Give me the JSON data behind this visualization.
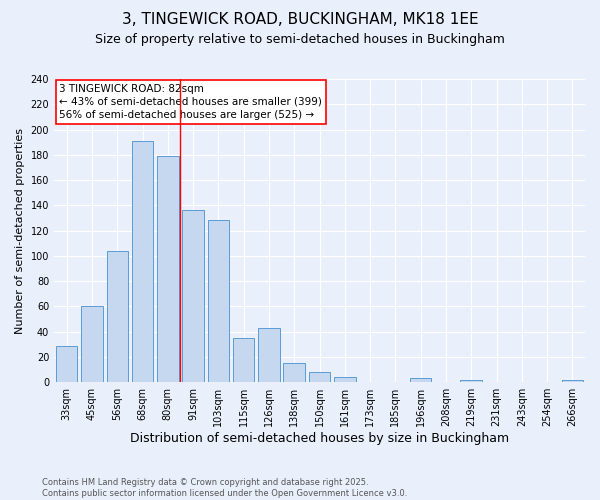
{
  "title": "3, TINGEWICK ROAD, BUCKINGHAM, MK18 1EE",
  "subtitle": "Size of property relative to semi-detached houses in Buckingham",
  "xlabel": "Distribution of semi-detached houses by size in Buckingham",
  "ylabel": "Number of semi-detached properties",
  "footnote1": "Contains HM Land Registry data © Crown copyright and database right 2025.",
  "footnote2": "Contains public sector information licensed under the Open Government Licence v3.0.",
  "bar_labels": [
    "33sqm",
    "45sqm",
    "56sqm",
    "68sqm",
    "80sqm",
    "91sqm",
    "103sqm",
    "115sqm",
    "126sqm",
    "138sqm",
    "150sqm",
    "161sqm",
    "173sqm",
    "185sqm",
    "196sqm",
    "208sqm",
    "219sqm",
    "231sqm",
    "243sqm",
    "254sqm",
    "266sqm"
  ],
  "bar_values": [
    29,
    60,
    104,
    191,
    179,
    136,
    128,
    35,
    43,
    15,
    8,
    4,
    0,
    0,
    3,
    0,
    2,
    0,
    0,
    0,
    2
  ],
  "bar_color": "#c5d8f0",
  "bar_edge_color": "#5b9bd5",
  "background_color": "#eaf0fb",
  "grid_color": "#ffffff",
  "vline_x": 4.5,
  "vline_color": "red",
  "annotation_text": "3 TINGEWICK ROAD: 82sqm\n← 43% of semi-detached houses are smaller (399)\n56% of semi-detached houses are larger (525) →",
  "annotation_box_color": "#ffffff",
  "annotation_box_edge": "red",
  "ylim": [
    0,
    240
  ],
  "yticks": [
    0,
    20,
    40,
    60,
    80,
    100,
    120,
    140,
    160,
    180,
    200,
    220,
    240
  ],
  "title_fontsize": 11,
  "subtitle_fontsize": 9,
  "xlabel_fontsize": 9,
  "ylabel_fontsize": 8,
  "tick_fontsize": 7,
  "annotation_fontsize": 7.5
}
